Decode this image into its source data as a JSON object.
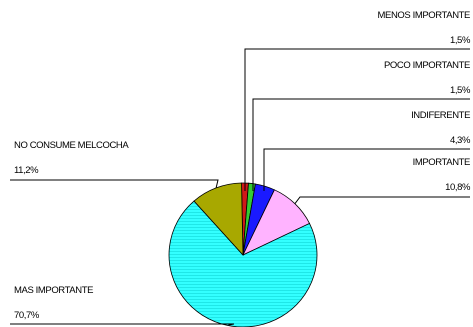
{
  "chart_data": {
    "type": "pie",
    "title": "",
    "slices": [
      {
        "label": "MENOS IMPORTANTE",
        "value": 1.5,
        "value_text": "1,5%",
        "color": "#d01818"
      },
      {
        "label": "POCO IMPORTANTE",
        "value": 1.5,
        "value_text": "1,5%",
        "color": "#33cc33"
      },
      {
        "label": "INDIFERENTE",
        "value": 4.3,
        "value_text": "4,3%",
        "color": "#1a1aff"
      },
      {
        "label": "IMPORTANTE",
        "value": 10.8,
        "value_text": "10,8%",
        "color": "#ffb3ff"
      },
      {
        "label": "MAS IMPORTANTE",
        "value": 70.7,
        "value_text": "70,7%",
        "color": "#33ffff"
      },
      {
        "label": "NO CONSUME MELCOCHA",
        "value": 11.2,
        "value_text": "11,2%",
        "color": "#a8a800"
      }
    ],
    "legend": "none",
    "grid": false
  }
}
